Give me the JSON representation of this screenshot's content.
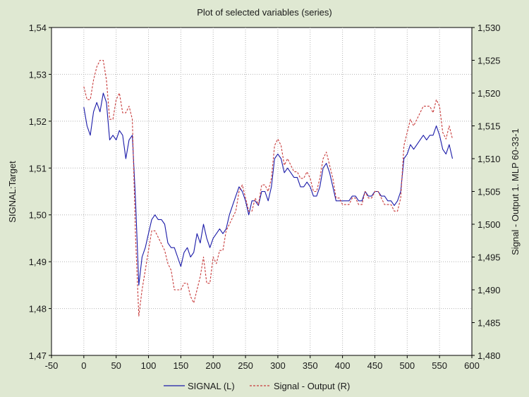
{
  "chart_data": {
    "type": "line",
    "title": "Plot of selected variables (series)",
    "xlabel": "",
    "ylabel_left": "SIGNAL:Target",
    "ylabel_right": "Signal - Output 1. MLP 60-33-1",
    "xlim": [
      -50,
      600
    ],
    "ylim_left": [
      1.47,
      1.54
    ],
    "ylim_right": [
      1.48,
      1.53
    ],
    "x_ticks": [
      "-50",
      "0",
      "50",
      "100",
      "150",
      "200",
      "250",
      "300",
      "350",
      "400",
      "450",
      "500",
      "550",
      "600"
    ],
    "y_left_ticks": [
      "1,47",
      "1,48",
      "1,49",
      "1,50",
      "1,51",
      "1,52",
      "1,53",
      "1,54"
    ],
    "y_right_ticks": [
      "1,480",
      "1,485",
      "1,490",
      "1,495",
      "1,500",
      "1,505",
      "1,510",
      "1,515",
      "1,520",
      "1,525",
      "1,530"
    ],
    "grid": true,
    "legend_position": "bottom",
    "colors": {
      "left": "#1a1aa8",
      "right": "#c83c3c",
      "background": "#dfe8d2"
    },
    "series": [
      {
        "name": "SIGNAL (L)",
        "axis": "left",
        "style": "solid",
        "x": [
          0,
          5,
          10,
          15,
          20,
          25,
          30,
          35,
          40,
          45,
          50,
          55,
          60,
          65,
          70,
          75,
          80,
          85,
          90,
          95,
          100,
          105,
          110,
          115,
          120,
          125,
          130,
          135,
          140,
          145,
          150,
          155,
          160,
          165,
          170,
          175,
          180,
          185,
          190,
          195,
          200,
          205,
          210,
          215,
          220,
          225,
          230,
          235,
          240,
          245,
          250,
          255,
          260,
          265,
          270,
          275,
          280,
          285,
          290,
          295,
          300,
          305,
          310,
          315,
          320,
          325,
          330,
          335,
          340,
          345,
          350,
          355,
          360,
          365,
          370,
          375,
          380,
          385,
          390,
          395,
          400,
          405,
          410,
          415,
          420,
          425,
          430,
          435,
          440,
          445,
          450,
          455,
          460,
          465,
          470,
          475,
          480,
          485,
          490,
          495,
          500,
          505,
          510,
          515,
          520,
          525,
          530,
          535,
          540,
          545,
          550,
          555,
          560,
          565,
          570
        ],
        "values": [
          1.523,
          1.519,
          1.517,
          1.522,
          1.524,
          1.522,
          1.526,
          1.524,
          1.516,
          1.517,
          1.516,
          1.518,
          1.517,
          1.512,
          1.516,
          1.517,
          1.503,
          1.485,
          1.491,
          1.493,
          1.496,
          1.499,
          1.5,
          1.499,
          1.499,
          1.498,
          1.494,
          1.493,
          1.493,
          1.491,
          1.489,
          1.492,
          1.493,
          1.491,
          1.492,
          1.496,
          1.494,
          1.498,
          1.495,
          1.493,
          1.495,
          1.496,
          1.497,
          1.496,
          1.497,
          1.5,
          1.502,
          1.504,
          1.506,
          1.505,
          1.503,
          1.5,
          1.503,
          1.503,
          1.502,
          1.505,
          1.505,
          1.503,
          1.506,
          1.512,
          1.513,
          1.512,
          1.509,
          1.51,
          1.509,
          1.508,
          1.508,
          1.506,
          1.506,
          1.507,
          1.506,
          1.504,
          1.504,
          1.506,
          1.51,
          1.511,
          1.509,
          1.506,
          1.503,
          1.503,
          1.503,
          1.503,
          1.503,
          1.504,
          1.504,
          1.503,
          1.503,
          1.505,
          1.504,
          1.504,
          1.505,
          1.505,
          1.504,
          1.504,
          1.503,
          1.503,
          1.502,
          1.503,
          1.505,
          1.512,
          1.513,
          1.515,
          1.514,
          1.515,
          1.516,
          1.517,
          1.516,
          1.517,
          1.517,
          1.519,
          1.517,
          1.514,
          1.513,
          1.515,
          1.512
        ]
      },
      {
        "name": "Signal - Output (R)",
        "axis": "right",
        "style": "dashed",
        "x": [
          0,
          5,
          10,
          15,
          20,
          25,
          30,
          35,
          40,
          45,
          50,
          55,
          60,
          65,
          70,
          75,
          80,
          85,
          90,
          95,
          100,
          105,
          110,
          115,
          120,
          125,
          130,
          135,
          140,
          145,
          150,
          155,
          160,
          165,
          170,
          175,
          180,
          185,
          190,
          195,
          200,
          205,
          210,
          215,
          220,
          225,
          230,
          235,
          240,
          245,
          250,
          255,
          260,
          265,
          270,
          275,
          280,
          285,
          290,
          295,
          300,
          305,
          310,
          315,
          320,
          325,
          330,
          335,
          340,
          345,
          350,
          355,
          360,
          365,
          370,
          375,
          380,
          385,
          390,
          395,
          400,
          405,
          410,
          415,
          420,
          425,
          430,
          435,
          440,
          445,
          450,
          455,
          460,
          465,
          470,
          475,
          480,
          485,
          490,
          495,
          500,
          505,
          510,
          515,
          520,
          525,
          530,
          535,
          540,
          545,
          550,
          555,
          560,
          565,
          570
        ],
        "values": [
          1.521,
          1.519,
          1.519,
          1.522,
          1.524,
          1.525,
          1.525,
          1.522,
          1.516,
          1.516,
          1.519,
          1.52,
          1.517,
          1.517,
          1.518,
          1.516,
          1.498,
          1.486,
          1.49,
          1.493,
          1.496,
          1.499,
          1.499,
          1.498,
          1.497,
          1.496,
          1.494,
          1.493,
          1.49,
          1.49,
          1.49,
          1.491,
          1.491,
          1.489,
          1.488,
          1.49,
          1.492,
          1.495,
          1.491,
          1.491,
          1.495,
          1.494,
          1.496,
          1.496,
          1.499,
          1.5,
          1.501,
          1.502,
          1.505,
          1.506,
          1.504,
          1.502,
          1.502,
          1.504,
          1.503,
          1.506,
          1.506,
          1.505,
          1.507,
          1.512,
          1.513,
          1.512,
          1.509,
          1.51,
          1.509,
          1.508,
          1.508,
          1.507,
          1.507,
          1.508,
          1.507,
          1.505,
          1.505,
          1.507,
          1.51,
          1.511,
          1.509,
          1.507,
          1.504,
          1.504,
          1.503,
          1.503,
          1.503,
          1.504,
          1.504,
          1.503,
          1.503,
          1.505,
          1.504,
          1.504,
          1.505,
          1.505,
          1.504,
          1.503,
          1.503,
          1.503,
          1.502,
          1.502,
          1.504,
          1.512,
          1.514,
          1.516,
          1.515,
          1.516,
          1.517,
          1.518,
          1.518,
          1.518,
          1.517,
          1.519,
          1.518,
          1.514,
          1.513,
          1.515,
          1.513
        ]
      }
    ]
  }
}
